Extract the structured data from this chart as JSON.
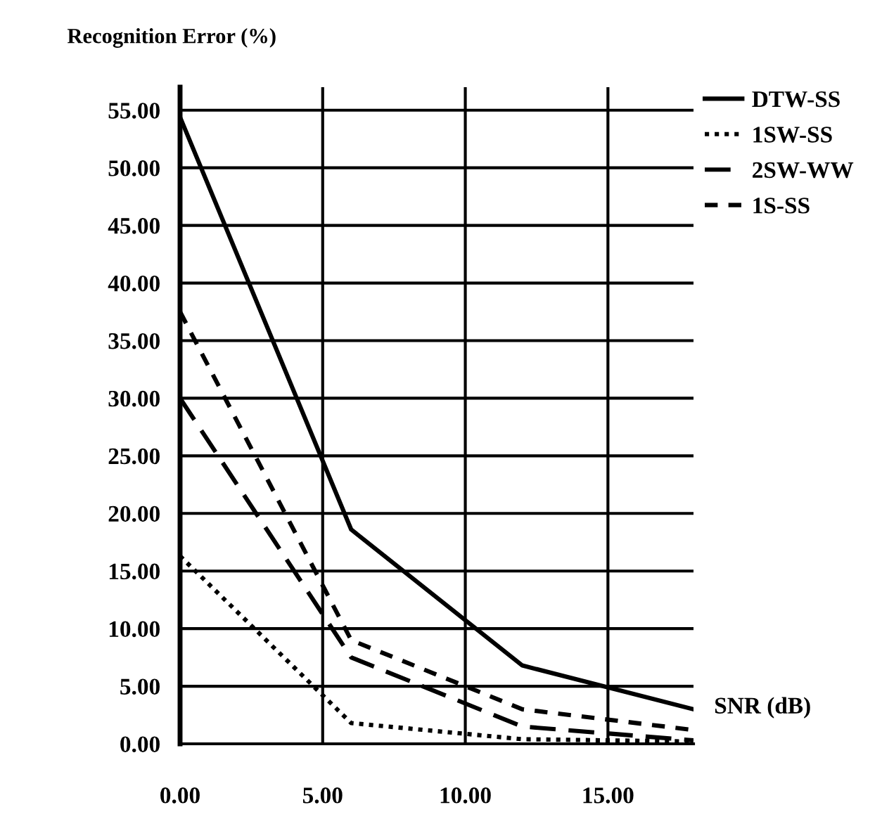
{
  "chart_data": {
    "type": "line",
    "xlabel": "SNR (dB)",
    "ylabel": "Recognition Error (%)",
    "x": [
      0,
      6,
      12,
      18
    ],
    "series": [
      {
        "name": "DTW-SS",
        "color": "#000000",
        "line_style": "solid",
        "values": [
          54.4,
          18.6,
          6.8,
          3.0
        ]
      },
      {
        "name": "1SW-SS",
        "color": "#000000",
        "line_style": "dotted",
        "values": [
          16.3,
          1.8,
          0.4,
          0.2
        ]
      },
      {
        "name": "2SW-WW",
        "color": "#000000",
        "line_style": "dashed",
        "values": [
          30.0,
          7.5,
          1.5,
          0.3
        ]
      },
      {
        "name": "1S-SS",
        "color": "#000000",
        "line_style": "shortdash",
        "values": [
          37.5,
          9.0,
          3.0,
          1.2
        ]
      }
    ],
    "xlim": [
      0,
      18
    ],
    "ylim": [
      0,
      57
    ],
    "xticks": [
      {
        "value": 0,
        "label": "0.00"
      },
      {
        "value": 5,
        "label": "5.00"
      },
      {
        "value": 10,
        "label": "10.00"
      },
      {
        "value": 15,
        "label": "15.00"
      }
    ],
    "yticks": [
      {
        "value": 0,
        "label": "0.00"
      },
      {
        "value": 5,
        "label": "5.00"
      },
      {
        "value": 10,
        "label": "10.00"
      },
      {
        "value": 15,
        "label": "15.00"
      },
      {
        "value": 20,
        "label": "20.00"
      },
      {
        "value": 25,
        "label": "25.00"
      },
      {
        "value": 30,
        "label": "30.00"
      },
      {
        "value": 35,
        "label": "35.00"
      },
      {
        "value": 40,
        "label": "40.00"
      },
      {
        "value": 45,
        "label": "45.00"
      },
      {
        "value": 50,
        "label": "50.00"
      },
      {
        "value": 55,
        "label": "55.00"
      }
    ],
    "grid": true,
    "legend": "top right",
    "marker": "none"
  }
}
